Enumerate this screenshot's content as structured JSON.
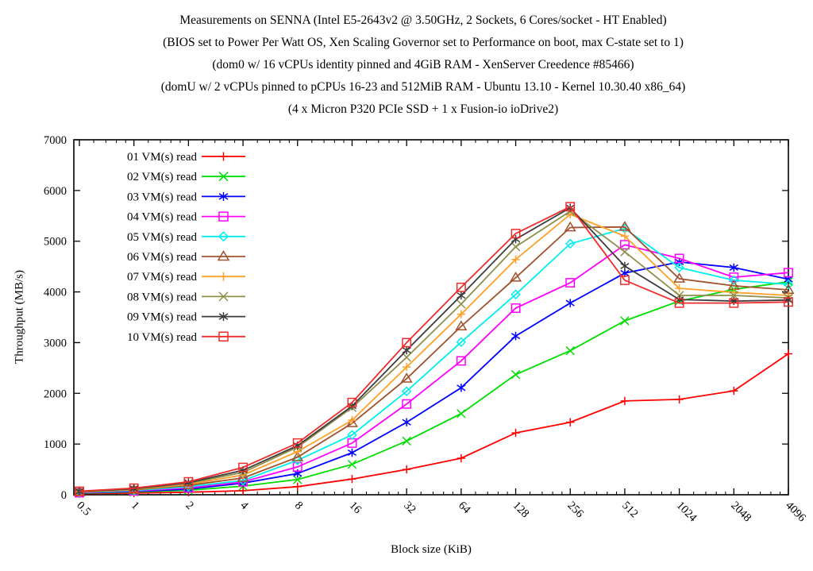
{
  "title_lines": [
    "Measurements on SENNA (Intel E5-2643v2 @ 3.50GHz, 2 Sockets, 6 Cores/socket - HT Enabled)",
    "(BIOS set to Power Per Watt OS, Xen Scaling Governor set to Performance on boot, max C-state set to 1)",
    "(dom0 w/ 16 vCPUs identity pinned and 4GiB RAM - XenServer Creedence #85466)",
    "(domU w/ 2 vCPUs pinned to pCPUs 16-23 and 512MiB RAM - Ubuntu 13.10 - Kernel 10.30.40 x86_64)",
    "(4 x Micron P320 PCIe SSD + 1 x Fusion-io ioDrive2)"
  ],
  "chart_data": {
    "type": "line",
    "title": "Measurements on SENNA",
    "xlabel": "Block size (KiB)",
    "ylabel": "Throughput (MB/s)",
    "x_scale": "log2",
    "grid": false,
    "legend_position": "top-left-inside",
    "x": [
      0.5,
      1,
      2,
      4,
      8,
      16,
      32,
      64,
      128,
      256,
      512,
      1024,
      2048,
      4096
    ],
    "x_tick_labels": [
      "0.5",
      "1",
      "2",
      "4",
      "8",
      "16",
      "32",
      "64",
      "128",
      "256",
      "512",
      "1024",
      "2048",
      "4096"
    ],
    "ylim": [
      0,
      7000
    ],
    "y_ticks": [
      0,
      1000,
      2000,
      3000,
      4000,
      5000,
      6000,
      7000
    ],
    "series": [
      {
        "name": "01 VM(s) read",
        "color": "#ff0000",
        "marker": "plus",
        "values": [
          20,
          35,
          50,
          80,
          160,
          310,
          500,
          720,
          1220,
          1430,
          1850,
          1880,
          2050,
          2780
        ]
      },
      {
        "name": "02 VM(s) read",
        "color": "#00dd00",
        "marker": "cross",
        "values": [
          30,
          55,
          90,
          170,
          300,
          600,
          1060,
          1600,
          2370,
          2840,
          3430,
          3820,
          4050,
          4200
        ]
      },
      {
        "name": "03 VM(s) read",
        "color": "#0000ff",
        "marker": "asterisk",
        "values": [
          35,
          65,
          110,
          230,
          420,
          830,
          1430,
          2110,
          3130,
          3780,
          4370,
          4590,
          4480,
          4250
        ]
      },
      {
        "name": "04 VM(s) read",
        "color": "#ff00ff",
        "marker": "square",
        "values": [
          40,
          75,
          135,
          255,
          550,
          1020,
          1790,
          2640,
          3680,
          4180,
          4930,
          4660,
          4290,
          4380
        ]
      },
      {
        "name": "05 VM(s) read",
        "color": "#00eeee",
        "marker": "diamond",
        "values": [
          45,
          85,
          160,
          280,
          680,
          1180,
          2040,
          3010,
          3950,
          4950,
          5250,
          4480,
          4230,
          4150
        ]
      },
      {
        "name": "06 VM(s) read",
        "color": "#a0522d",
        "marker": "triangle",
        "values": [
          50,
          95,
          185,
          330,
          740,
          1410,
          2290,
          3320,
          4280,
          5270,
          5280,
          4260,
          4120,
          4040
        ]
      },
      {
        "name": "07 VM(s) read",
        "color": "#ffa028",
        "marker": "plus",
        "values": [
          55,
          105,
          205,
          390,
          850,
          1470,
          2520,
          3560,
          4640,
          5530,
          5100,
          4070,
          3990,
          3930
        ]
      },
      {
        "name": "08 VM(s) read",
        "color": "#8f8f4b",
        "marker": "cross",
        "values": [
          60,
          110,
          225,
          440,
          940,
          1720,
          2710,
          3760,
          4890,
          5590,
          4790,
          3930,
          3930,
          3880
        ]
      },
      {
        "name": "09 VM(s) read",
        "color": "#3c3c3c",
        "marker": "asterisk",
        "values": [
          65,
          120,
          240,
          480,
          970,
          1750,
          2850,
          3930,
          5040,
          5660,
          4510,
          3850,
          3820,
          3840
        ]
      },
      {
        "name": "10 VM(s) read",
        "color": "#ee2c2c",
        "marker": "square",
        "values": [
          70,
          130,
          255,
          540,
          1020,
          1820,
          3000,
          4090,
          5150,
          5680,
          4230,
          3780,
          3780,
          3800
        ]
      }
    ]
  }
}
